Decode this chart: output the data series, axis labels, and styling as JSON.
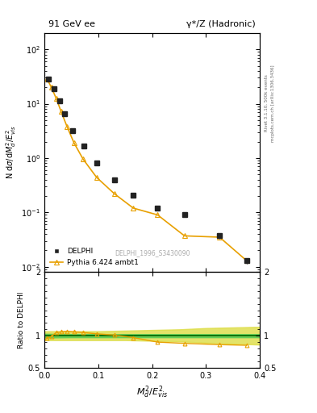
{
  "title_left": "91 GeV ee",
  "title_right": "γ*/Z (Hadronic)",
  "ylabel_main": "N dσ/dM²_d/E²_vis",
  "ylabel_ratio": "Ratio to DELPHI",
  "xlabel": "$M_d^2/E_{vis}^2$",
  "watermark": "DELPHI_1996_S3430090",
  "right_label": "Rivet 3.1.10, 500k events\nmcplots.cern.ch [arXiv:1306.3436]",
  "delphi_x": [
    0.008,
    0.018,
    0.028,
    0.038,
    0.053,
    0.073,
    0.098,
    0.13,
    0.165,
    0.21,
    0.26,
    0.325,
    0.375
  ],
  "delphi_y": [
    28.0,
    19.0,
    11.5,
    6.5,
    3.2,
    1.65,
    0.82,
    0.4,
    0.21,
    0.12,
    0.09,
    0.037,
    0.013
  ],
  "delphi_yerr": [
    1.5,
    1.2,
    0.9,
    0.5,
    0.22,
    0.13,
    0.06,
    0.035,
    0.018,
    0.012,
    0.009,
    0.004,
    0.0015
  ],
  "pythia_x": [
    0.005,
    0.013,
    0.022,
    0.031,
    0.042,
    0.055,
    0.072,
    0.097,
    0.13,
    0.165,
    0.21,
    0.26,
    0.325,
    0.375
  ],
  "pythia_y": [
    28.5,
    20.0,
    12.5,
    7.2,
    3.8,
    1.9,
    0.95,
    0.44,
    0.22,
    0.12,
    0.09,
    0.037,
    0.035,
    0.013
  ],
  "ratio_x": [
    0.005,
    0.013,
    0.022,
    0.031,
    0.042,
    0.055,
    0.072,
    0.097,
    0.13,
    0.165,
    0.21,
    0.26,
    0.325,
    0.375
  ],
  "ratio_y": [
    0.96,
    0.99,
    1.05,
    1.06,
    1.07,
    1.06,
    1.05,
    1.03,
    1.01,
    0.97,
    0.9,
    0.88,
    0.86,
    0.85
  ],
  "delphi_color": "#222222",
  "pythia_color": "#E8A000",
  "green_color": "#55CC55",
  "yellow_color": "#DDDD44",
  "bg_color": "#ffffff",
  "ratio_ref_color": "#006400",
  "ylim_main": [
    0.008,
    200
  ],
  "ylim_ratio": [
    0.5,
    2.0
  ],
  "xlim": [
    0.0,
    0.4
  ]
}
